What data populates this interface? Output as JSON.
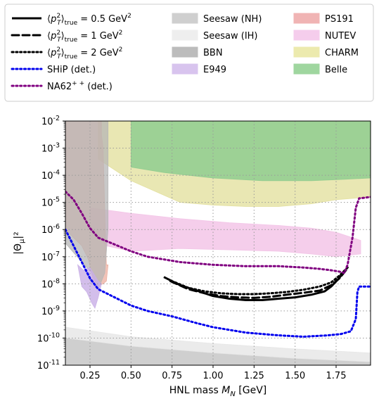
{
  "chart_data": {
    "type": "line",
    "xlabel": "HNL mass M_N [GeV]",
    "ylabel": "|Θ_μ|²",
    "xlim": [
      0.1,
      1.96
    ],
    "ylim_log10": [
      -11,
      -2
    ],
    "y_scale": "log",
    "grid": true,
    "grid_style": "dotted",
    "legend_position": "top, above plot, 3 columns",
    "x_ticks": [
      {
        "value": 0.25,
        "label": "0.25"
      },
      {
        "value": 0.5,
        "label": "0.50"
      },
      {
        "value": 0.75,
        "label": "0.75"
      },
      {
        "value": 1.0,
        "label": "1.00"
      },
      {
        "value": 1.25,
        "label": "1.25"
      },
      {
        "value": 1.5,
        "label": "1.50"
      },
      {
        "value": 1.75,
        "label": "1.75"
      }
    ],
    "y_ticks": [
      {
        "exp": -11,
        "label": "10-11"
      },
      {
        "exp": -10,
        "label": "10-10"
      },
      {
        "exp": -9,
        "label": "10-9"
      },
      {
        "exp": -8,
        "label": "10-8"
      },
      {
        "exp": -7,
        "label": "10-7"
      },
      {
        "exp": -6,
        "label": "10-6"
      },
      {
        "exp": -5,
        "label": "10-5"
      },
      {
        "exp": -4,
        "label": "10-4"
      },
      {
        "exp": -3,
        "label": "10-3"
      },
      {
        "exp": -2,
        "label": "10-2"
      }
    ],
    "bands": [
      {
        "name": "Seesaw (NH)",
        "color": "#bfbfbf",
        "alpha": 0.75,
        "upper": [
          [
            0.1,
            -10.0
          ],
          [
            0.5,
            -10.3
          ],
          [
            1.0,
            -10.55
          ],
          [
            1.5,
            -10.75
          ],
          [
            1.96,
            -10.88
          ]
        ],
        "lower": [
          [
            0.1,
            -11
          ],
          [
            1.96,
            -11
          ]
        ]
      },
      {
        "name": "Seesaw (IH)",
        "color": "#e6e6e6",
        "alpha": 0.8,
        "upper": [
          [
            0.1,
            -9.6
          ],
          [
            0.5,
            -9.95
          ],
          [
            1.0,
            -10.2
          ],
          [
            1.5,
            -10.4
          ],
          [
            1.96,
            -10.55
          ]
        ],
        "lower": [
          [
            0.1,
            -10.0
          ],
          [
            0.5,
            -10.3
          ],
          [
            1.0,
            -10.55
          ],
          [
            1.5,
            -10.75
          ],
          [
            1.96,
            -10.88
          ]
        ]
      },
      {
        "name": "CHARM",
        "color": "#e2df9a",
        "alpha": 0.75,
        "upper": [
          [
            0.3,
            -2
          ],
          [
            1.96,
            -2
          ]
        ],
        "lower": [
          [
            0.3,
            -3.4
          ],
          [
            0.5,
            -4.2
          ],
          [
            0.8,
            -5.0
          ],
          [
            1.0,
            -5.1
          ],
          [
            1.2,
            -5.15
          ],
          [
            1.4,
            -5.15
          ],
          [
            1.6,
            -5.05
          ],
          [
            1.75,
            -4.9
          ],
          [
            1.96,
            -4.8
          ]
        ]
      },
      {
        "name": "Belle",
        "color": "#8fcc8f",
        "alpha": 0.85,
        "upper": [
          [
            0.5,
            -2
          ],
          [
            1.96,
            -2
          ]
        ],
        "lower": [
          [
            0.5,
            -3.7
          ],
          [
            0.7,
            -3.9
          ],
          [
            1.0,
            -4.1
          ],
          [
            1.3,
            -4.2
          ],
          [
            1.6,
            -4.2
          ],
          [
            1.8,
            -4.15
          ],
          [
            1.96,
            -4.1
          ]
        ]
      },
      {
        "name": "NUTEV",
        "color": "#f2c2e6",
        "alpha": 0.8,
        "upper": [
          [
            0.25,
            -5.2
          ],
          [
            0.5,
            -5.4
          ],
          [
            0.8,
            -5.6
          ],
          [
            1.1,
            -5.75
          ],
          [
            1.4,
            -5.85
          ],
          [
            1.6,
            -5.95
          ],
          [
            1.75,
            -6.1
          ],
          [
            1.9,
            -6.4
          ]
        ],
        "lower": [
          [
            0.25,
            -6.0
          ],
          [
            0.35,
            -6.6
          ],
          [
            0.5,
            -6.8
          ],
          [
            0.8,
            -6.7
          ],
          [
            1.1,
            -6.75
          ],
          [
            1.4,
            -6.8
          ],
          [
            1.6,
            -6.9
          ],
          [
            1.75,
            -7.0
          ],
          [
            1.9,
            -6.9
          ]
        ]
      },
      {
        "name": "PS191",
        "color": "#ebaa9a",
        "alpha": 0.7,
        "upper": [
          [
            0.1,
            -2
          ],
          [
            0.32,
            -2
          ],
          [
            0.32,
            -2.5
          ],
          [
            0.33,
            -3.0
          ],
          [
            0.345,
            -6.5
          ],
          [
            0.35,
            -7.3
          ],
          [
            0.36,
            -7.3
          ]
        ],
        "lower": [
          [
            0.1,
            -6.0
          ],
          [
            0.15,
            -6.3
          ],
          [
            0.2,
            -6.6
          ],
          [
            0.24,
            -7.1
          ],
          [
            0.27,
            -7.9
          ],
          [
            0.29,
            -8.1
          ],
          [
            0.33,
            -8.0
          ],
          [
            0.35,
            -7.9
          ],
          [
            0.36,
            -7.3
          ]
        ]
      },
      {
        "name": "BBN",
        "color": "#b5b5b5",
        "alpha": 0.75,
        "upper": [
          [
            0.1,
            -2
          ],
          [
            0.36,
            -2
          ]
        ],
        "lower": [
          [
            0.1,
            -6.5
          ],
          [
            0.2,
            -7.2
          ],
          [
            0.26,
            -7.6
          ],
          [
            0.3,
            -8.2
          ],
          [
            0.34,
            -7.6
          ],
          [
            0.36,
            -6.0
          ]
        ]
      },
      {
        "name": "E949",
        "color": "#c8aee6",
        "alpha": 0.8,
        "upper": [
          [
            0.175,
            -7.3
          ],
          [
            0.21,
            -7.5
          ],
          [
            0.25,
            -7.4
          ],
          [
            0.28,
            -7.7
          ],
          [
            0.3,
            -7.9
          ],
          [
            0.32,
            -8.0
          ]
        ],
        "lower": [
          [
            0.175,
            -7.3
          ],
          [
            0.2,
            -8.1
          ],
          [
            0.23,
            -8.3
          ],
          [
            0.26,
            -8.7
          ],
          [
            0.28,
            -8.9
          ],
          [
            0.3,
            -8.5
          ],
          [
            0.32,
            -8.0
          ]
        ]
      }
    ],
    "series": [
      {
        "name": "⟨p_T^2⟩true = 0.5 GeV2",
        "style": "solid",
        "color": "#000000",
        "width": 3,
        "points": [
          [
            0.7,
            -7.75
          ],
          [
            0.8,
            -8.05
          ],
          [
            0.9,
            -8.25
          ],
          [
            1.0,
            -8.45
          ],
          [
            1.1,
            -8.55
          ],
          [
            1.2,
            -8.6
          ],
          [
            1.3,
            -8.6
          ],
          [
            1.4,
            -8.55
          ],
          [
            1.5,
            -8.5
          ],
          [
            1.6,
            -8.4
          ],
          [
            1.68,
            -8.28
          ],
          [
            1.72,
            -8.1
          ],
          [
            1.76,
            -7.85
          ],
          [
            1.8,
            -7.55
          ]
        ]
      },
      {
        "name": "⟨p_T^2⟩true = 1 GeV2",
        "style": "dashed",
        "color": "#000000",
        "width": 3,
        "points": [
          [
            0.74,
            -7.9
          ],
          [
            0.85,
            -8.2
          ],
          [
            0.95,
            -8.35
          ],
          [
            1.05,
            -8.45
          ],
          [
            1.15,
            -8.5
          ],
          [
            1.25,
            -8.52
          ],
          [
            1.35,
            -8.48
          ],
          [
            1.45,
            -8.4
          ],
          [
            1.55,
            -8.33
          ],
          [
            1.65,
            -8.25
          ],
          [
            1.72,
            -8.05
          ],
          [
            1.77,
            -7.8
          ],
          [
            1.81,
            -7.5
          ]
        ]
      },
      {
        "name": "⟨p_T^2⟩true = 2 GeV2",
        "style": "dotted",
        "color": "#000000",
        "width": 3,
        "points": [
          [
            0.77,
            -7.95
          ],
          [
            0.85,
            -8.15
          ],
          [
            0.95,
            -8.28
          ],
          [
            1.05,
            -8.35
          ],
          [
            1.15,
            -8.38
          ],
          [
            1.25,
            -8.38
          ],
          [
            1.35,
            -8.35
          ],
          [
            1.45,
            -8.3
          ],
          [
            1.55,
            -8.22
          ],
          [
            1.65,
            -8.1
          ],
          [
            1.72,
            -7.95
          ],
          [
            1.77,
            -7.7
          ],
          [
            1.82,
            -7.4
          ]
        ]
      },
      {
        "name": "SHiP (det.)",
        "style": "dotted",
        "color": "#0000ee",
        "width": 3,
        "points": [
          [
            0.1,
            -6.0
          ],
          [
            0.15,
            -6.6
          ],
          [
            0.2,
            -7.2
          ],
          [
            0.25,
            -7.8
          ],
          [
            0.3,
            -8.2
          ],
          [
            0.4,
            -8.5
          ],
          [
            0.5,
            -8.8
          ],
          [
            0.6,
            -9.0
          ],
          [
            0.75,
            -9.2
          ],
          [
            0.9,
            -9.45
          ],
          [
            1.0,
            -9.6
          ],
          [
            1.2,
            -9.8
          ],
          [
            1.4,
            -9.9
          ],
          [
            1.55,
            -9.95
          ],
          [
            1.7,
            -9.9
          ],
          [
            1.78,
            -9.85
          ],
          [
            1.84,
            -9.75
          ],
          [
            1.87,
            -9.3
          ],
          [
            1.88,
            -8.3
          ],
          [
            1.89,
            -8.1
          ],
          [
            1.96,
            -8.1
          ]
        ]
      },
      {
        "name": "NA62++ (det.)",
        "style": "dotted",
        "color": "#800080",
        "width": 3,
        "points": [
          [
            0.1,
            -4.6
          ],
          [
            0.15,
            -4.9
          ],
          [
            0.2,
            -5.4
          ],
          [
            0.25,
            -5.95
          ],
          [
            0.3,
            -6.3
          ],
          [
            0.4,
            -6.55
          ],
          [
            0.5,
            -6.8
          ],
          [
            0.6,
            -7.0
          ],
          [
            0.8,
            -7.2
          ],
          [
            1.0,
            -7.3
          ],
          [
            1.2,
            -7.35
          ],
          [
            1.4,
            -7.35
          ],
          [
            1.55,
            -7.4
          ],
          [
            1.65,
            -7.45
          ],
          [
            1.72,
            -7.5
          ],
          [
            1.77,
            -7.55
          ],
          [
            1.8,
            -7.6
          ],
          [
            1.82,
            -7.3
          ],
          [
            1.85,
            -6.3
          ],
          [
            1.87,
            -5.2
          ],
          [
            1.89,
            -4.85
          ],
          [
            1.96,
            -4.8
          ]
        ]
      }
    ],
    "legend": [
      {
        "label": "⟨p_T^2⟩true = 0.5 GeV2",
        "kind": "line",
        "style": "solid",
        "color": "#000000"
      },
      {
        "label": "⟨p_T^2⟩true = 1 GeV2",
        "kind": "line",
        "style": "dashed",
        "color": "#000000"
      },
      {
        "label": "⟨p_T^2⟩true = 2 GeV2",
        "kind": "line",
        "style": "dotted",
        "color": "#000000"
      },
      {
        "label": "SHiP (det.)",
        "kind": "line",
        "style": "dotted",
        "color": "#0000ee"
      },
      {
        "label": "NA62++ (det.)",
        "kind": "line",
        "style": "dotted",
        "color": "#800080"
      },
      {
        "label": "Seesaw (NH)",
        "kind": "patch",
        "color": "#cfcfcf"
      },
      {
        "label": "Seesaw (IH)",
        "kind": "patch",
        "color": "#eeeeee"
      },
      {
        "label": "BBN",
        "kind": "patch",
        "color": "#bcbcbc"
      },
      {
        "label": "E949",
        "kind": "patch",
        "color": "#d8c4ee"
      },
      {
        "label": "PS191",
        "kind": "patch",
        "color": "#f0b4b4"
      },
      {
        "label": "NUTEV",
        "kind": "patch",
        "color": "#f5cdec"
      },
      {
        "label": "CHARM",
        "kind": "patch",
        "color": "#eceaae"
      },
      {
        "label": "Belle",
        "kind": "patch",
        "color": "#9fd69f"
      }
    ]
  }
}
